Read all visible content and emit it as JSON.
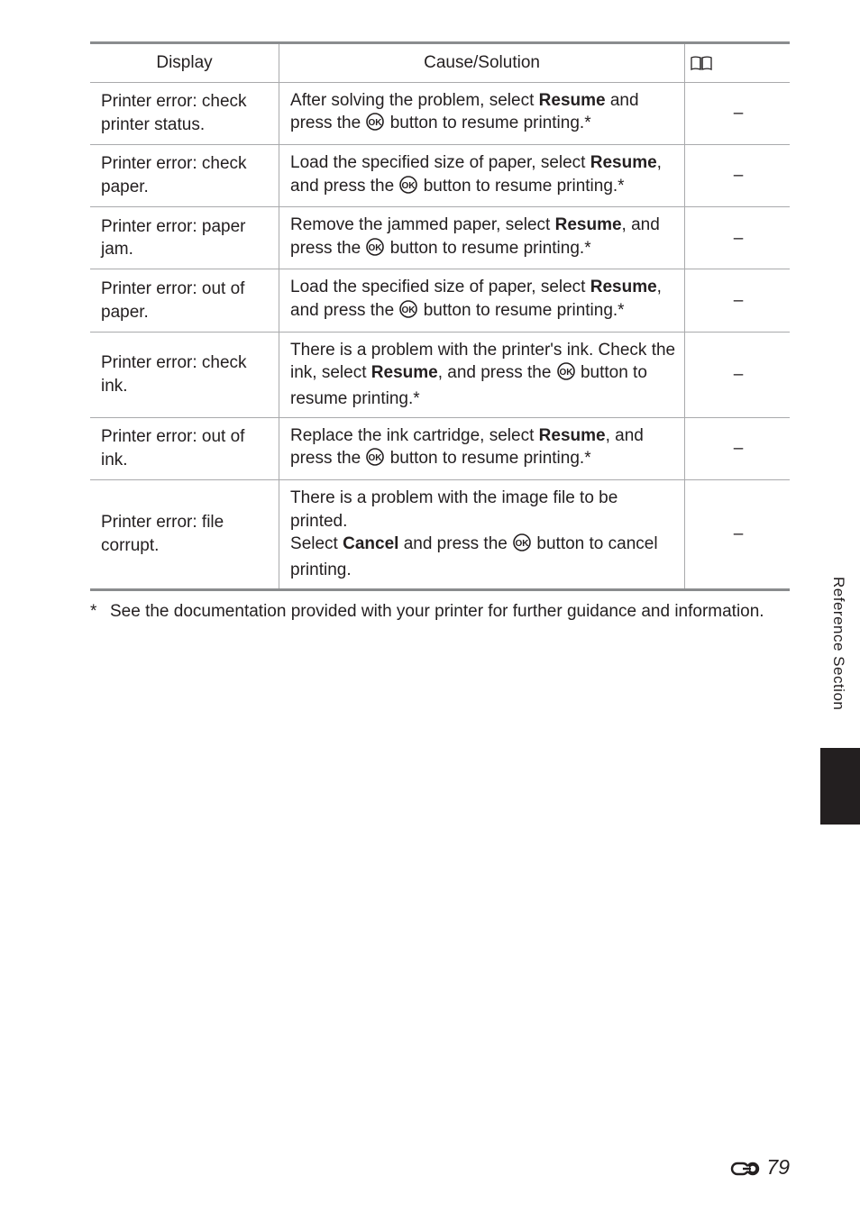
{
  "table": {
    "headers": {
      "display": "Display",
      "cause": "Cause/Solution",
      "ref_icon": "book-open-icon"
    },
    "rows": [
      {
        "display": "Printer error: check printer status.",
        "cause_pre": "After solving the problem, select ",
        "cause_bold": "Resume",
        "cause_mid": " and press the ",
        "cause_post": " button to resume printing.*",
        "ref": "–"
      },
      {
        "display": "Printer error: check paper.",
        "cause_pre": "Load the specified size of paper, select ",
        "cause_bold": "Resume",
        "cause_mid": ", and press the ",
        "cause_post": " button to resume printing.*",
        "ref": "–"
      },
      {
        "display": "Printer error: paper jam.",
        "cause_pre": "Remove the jammed paper, select ",
        "cause_bold": "Resume",
        "cause_mid": ", and press the ",
        "cause_post": " button to resume printing.*",
        "ref": "–"
      },
      {
        "display": "Printer error: out of paper.",
        "cause_pre": "Load the specified size of paper, select ",
        "cause_bold": "Resume",
        "cause_mid": ", and press the ",
        "cause_post": " button to resume printing.*",
        "ref": "–"
      },
      {
        "display": "Printer error: check ink.",
        "cause_pre": "There is a problem with the printer's ink. Check the ink, select ",
        "cause_bold": "Resume",
        "cause_mid": ", and press the ",
        "cause_post": " button to resume printing.*",
        "ref": "–"
      },
      {
        "display": "Printer error: out of ink.",
        "cause_pre": "Replace the ink cartridge, select ",
        "cause_bold": "Resume",
        "cause_mid": ", and press the ",
        "cause_post": " button to resume printing.*",
        "ref": "–"
      },
      {
        "display": "Printer error: file corrupt.",
        "cause_pre": "There is a problem with the image file to be printed.\nSelect ",
        "cause_bold": "Cancel",
        "cause_mid": " and press the ",
        "cause_post": " button to cancel printing.",
        "ref": "–"
      }
    ]
  },
  "footnote": {
    "marker": "*",
    "text": "See the documentation provided with your printer for further guidance and information."
  },
  "side_tab": {
    "label": "Reference Section"
  },
  "footer": {
    "page_number": "79"
  },
  "colors": {
    "text": "#231f20",
    "rule": "#a9aaac",
    "rule_heavy": "#8a8c8e",
    "tab_block": "#231f20"
  }
}
